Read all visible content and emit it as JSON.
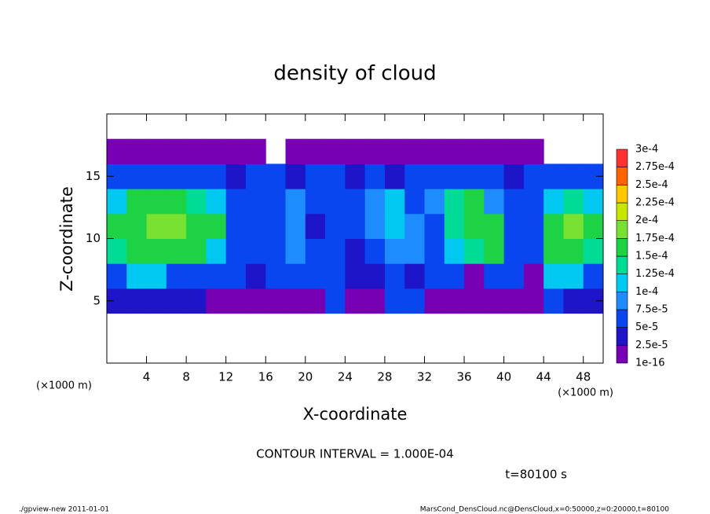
{
  "chart_data": {
    "type": "heatmap",
    "title": "density of cloud",
    "x_label": "X-coordinate",
    "y_label": "Z-coordinate",
    "x_unit": "(×1000 m)",
    "y_unit": "(×1000 m)",
    "contour_note": "CONTOUR INTERVAL = 1.000E-04",
    "time_note": "t=80100 s",
    "footer_left": "./gpview-new   2011-01-01",
    "footer_right": "MarsCond_DensCloud.nc@DensCloud,x=0:50000,z=0:20000,t=80100",
    "xlim": [
      0,
      50
    ],
    "xticks": [
      4,
      8,
      12,
      16,
      20,
      24,
      28,
      32,
      36,
      40,
      44,
      48
    ],
    "ylim": [
      0,
      20
    ],
    "yticks": [
      5,
      10,
      15
    ],
    "x": [
      1,
      3,
      5,
      7,
      9,
      11,
      13,
      15,
      17,
      19,
      21,
      23,
      25,
      27,
      29,
      31,
      33,
      35,
      37,
      39,
      41,
      43,
      45,
      47,
      49
    ],
    "y": [
      1,
      3,
      5,
      7,
      9,
      11,
      13,
      15,
      17,
      19
    ],
    "levels": [
      1e-16,
      {
        "value": 2.5e-05,
        "label": "2.5e-5"
      },
      {
        "value": 5e-05,
        "label": "5e-5"
      },
      {
        "value": 7.5e-05,
        "label": "7.5e-5"
      },
      {
        "value": 0.0001,
        "label": "1e-4"
      },
      {
        "value": 0.000125,
        "label": "1.25e-4"
      },
      {
        "value": 0.00015,
        "label": "1.5e-4"
      },
      {
        "value": 0.000175,
        "label": "1.75e-4"
      },
      {
        "value": 0.0002,
        "label": "2e-4"
      },
      {
        "value": 0.000225,
        "label": "2.25e-4"
      },
      {
        "value": 0.00025,
        "label": "2.5e-4"
      },
      {
        "value": 0.000275,
        "label": "2.75e-4"
      },
      {
        "value": 0.0003,
        "label": "3e-4"
      }
    ],
    "colors": [
      "#7800b4",
      "#1e14c8",
      "#0a46f0",
      "#1e8cff",
      "#00c8f0",
      "#00dc96",
      "#1ed246",
      "#78e132",
      "#c8e600",
      "#ffc800",
      "#ff6400",
      "#ff3232"
    ],
    "z": [
      [
        null,
        null,
        null,
        null,
        null,
        null,
        null,
        null,
        null,
        null,
        null,
        null,
        null,
        null,
        null,
        null,
        null,
        null,
        null,
        null,
        null,
        null,
        null,
        null,
        null
      ],
      [
        null,
        null,
        null,
        null,
        null,
        null,
        null,
        null,
        null,
        null,
        null,
        null,
        null,
        null,
        null,
        null,
        null,
        null,
        null,
        null,
        null,
        null,
        null,
        null,
        null
      ],
      [
        4e-05,
        4e-05,
        4e-05,
        4e-05,
        4e-05,
        1e-05,
        1e-05,
        1e-05,
        1e-05,
        1e-05,
        1e-05,
        6e-05,
        1e-05,
        1e-05,
        6e-05,
        6e-05,
        1e-05,
        1e-05,
        1e-05,
        1e-05,
        1e-05,
        1e-05,
        6e-05,
        4e-05,
        4e-05
      ],
      [
        6e-05,
        0.00011,
        0.00011,
        6e-05,
        6e-05,
        6e-05,
        6e-05,
        4e-05,
        6e-05,
        6e-05,
        6e-05,
        6e-05,
        4e-05,
        4e-05,
        6e-05,
        4e-05,
        6e-05,
        6e-05,
        1e-05,
        6e-05,
        6e-05,
        1e-05,
        0.00011,
        0.00011,
        6e-05
      ],
      [
        0.00014,
        0.00016,
        0.00016,
        0.00016,
        0.00016,
        0.00011,
        6e-05,
        6e-05,
        6e-05,
        9e-05,
        6e-05,
        6e-05,
        4e-05,
        6e-05,
        9e-05,
        9e-05,
        6e-05,
        0.00011,
        0.00014,
        0.00016,
        6e-05,
        6e-05,
        0.00016,
        0.00016,
        0.00014
      ],
      [
        0.00016,
        0.00016,
        0.00019,
        0.00019,
        0.00016,
        0.00016,
        6e-05,
        6e-05,
        6e-05,
        9e-05,
        4e-05,
        6e-05,
        6e-05,
        9e-05,
        0.00011,
        9e-05,
        6e-05,
        0.00014,
        0.00016,
        0.00016,
        6e-05,
        6e-05,
        0.00016,
        0.00019,
        0.00016
      ],
      [
        0.00011,
        0.00016,
        0.00016,
        0.00016,
        0.00014,
        0.00011,
        6e-05,
        6e-05,
        6e-05,
        9e-05,
        6e-05,
        6e-05,
        6e-05,
        9e-05,
        0.00011,
        6e-05,
        9e-05,
        0.00014,
        0.00016,
        9e-05,
        6e-05,
        6e-05,
        0.00011,
        0.00014,
        0.00011
      ],
      [
        6e-05,
        6e-05,
        6e-05,
        6e-05,
        6e-05,
        6e-05,
        4e-05,
        6e-05,
        6e-05,
        4e-05,
        6e-05,
        6e-05,
        4e-05,
        6e-05,
        4e-05,
        6e-05,
        6e-05,
        6e-05,
        6e-05,
        6e-05,
        4e-05,
        6e-05,
        6e-05,
        6e-05,
        6e-05
      ],
      [
        1e-05,
        1e-05,
        1e-05,
        1e-05,
        1e-05,
        1e-05,
        1e-05,
        1e-05,
        null,
        1e-05,
        1e-05,
        1e-05,
        1e-05,
        1e-05,
        1e-05,
        1e-05,
        1e-05,
        1e-05,
        1e-05,
        1e-05,
        1e-05,
        1e-05,
        null,
        null,
        null
      ],
      [
        null,
        null,
        null,
        null,
        null,
        null,
        null,
        null,
        null,
        null,
        null,
        null,
        null,
        null,
        null,
        null,
        null,
        null,
        null,
        null,
        null,
        null,
        null,
        null,
        null
      ]
    ]
  }
}
